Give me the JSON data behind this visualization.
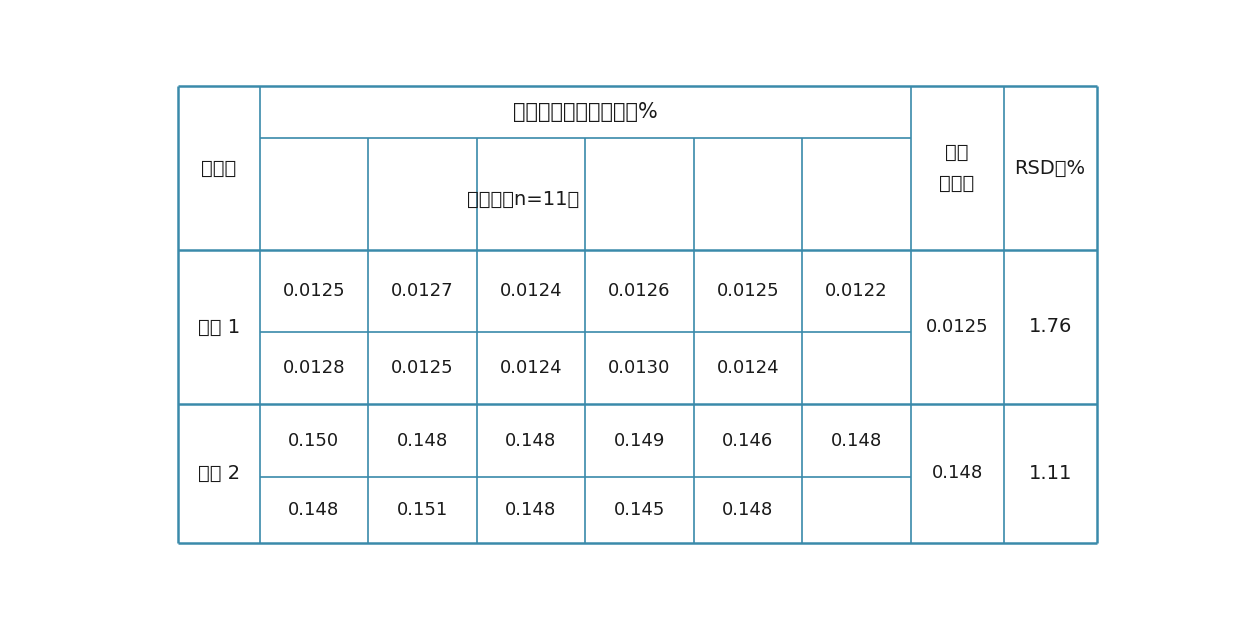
{
  "title": "焦炭表面吸附硫含量，%",
  "col_header_1": "试样号",
  "col_header_2": "测量値（n=11）",
  "col_header_3_line1": "统计",
  "col_header_3_line2": "平均値",
  "col_header_4": "RSD，%",
  "sample1_label_line1": "试样 1",
  "sample2_label_line1": "试样 2",
  "sample1_row1": [
    "0.0125",
    "0.0127",
    "0.0124",
    "0.0126",
    "0.0125",
    "0.0122"
  ],
  "sample1_row2": [
    "0.0128",
    "0.0125",
    "0.0124",
    "0.0130",
    "0.0124",
    ""
  ],
  "sample1_avg": "0.0125",
  "sample1_rsd": "1.76",
  "sample2_row1": [
    "0.150",
    "0.148",
    "0.148",
    "0.149",
    "0.146",
    "0.148"
  ],
  "sample2_row2": [
    "0.148",
    "0.151",
    "0.148",
    "0.145",
    "0.148",
    ""
  ],
  "sample2_avg": "0.148",
  "sample2_rsd": "1.11",
  "line_color": "#3a8aaa",
  "text_color": "#1a1a1a",
  "bg_color": "#ffffff",
  "outer_lw": 1.8,
  "inner_lw": 1.2
}
